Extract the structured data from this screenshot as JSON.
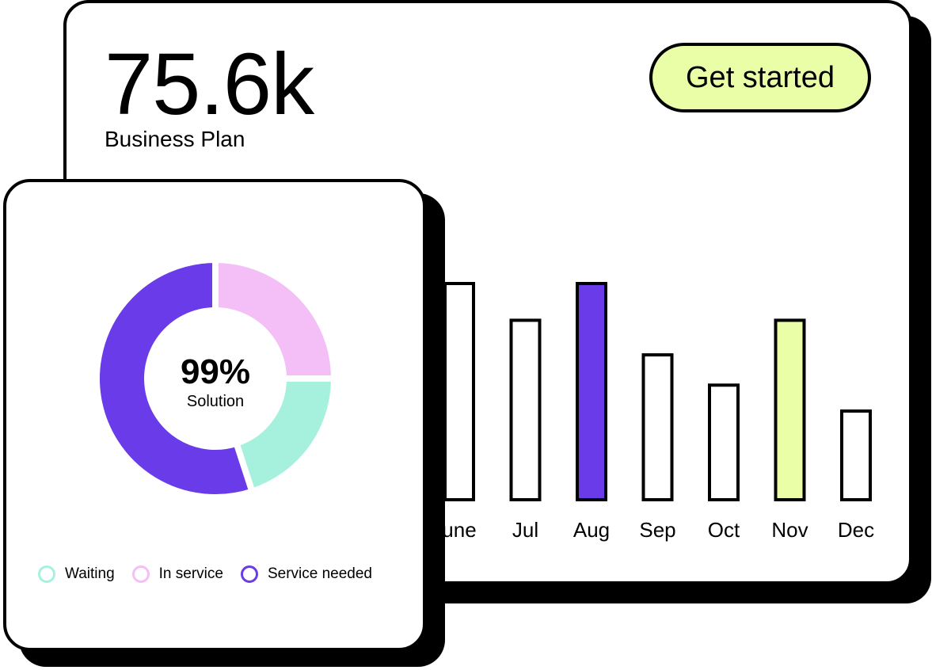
{
  "summary": {
    "value": "75.6k",
    "caption": "Business Plan",
    "cta_label": "Get started"
  },
  "colors": {
    "accent_purple": "#6a3be8",
    "accent_lime": "#e9fea6",
    "accent_pink": "#f4bff7",
    "accent_mint": "#a6f1de"
  },
  "chart_data": [
    {
      "type": "bar",
      "categories": [
        "June",
        "Jul",
        "Aug",
        "Sep",
        "Oct",
        "Nov",
        "Dec"
      ],
      "visible_labels": [
        "une",
        "Jul",
        "Aug",
        "Sep",
        "Oct",
        "Nov",
        "Dec"
      ],
      "values": [
        100,
        83,
        100,
        67,
        53,
        83,
        41
      ],
      "highlight": {
        "Aug": "#6a3be8",
        "Nov": "#e9fea6"
      },
      "ylim": [
        0,
        100
      ],
      "grid": false
    },
    {
      "type": "pie",
      "variant": "donut",
      "center_value": "99%",
      "center_label": "Solution",
      "slices": [
        {
          "name": "In service",
          "value": 25,
          "color": "#f4bff7"
        },
        {
          "name": "Waiting",
          "value": 20,
          "color": "#a6f1de"
        },
        {
          "name": "Service needed",
          "value": 55,
          "color": "#6a3be8"
        }
      ],
      "legend": [
        {
          "name": "Waiting",
          "color": "#a6f1de"
        },
        {
          "name": "In service",
          "color": "#f4bff7"
        },
        {
          "name": "Service needed",
          "color": "#6a3be8"
        }
      ],
      "legend_position": "bottom"
    }
  ]
}
